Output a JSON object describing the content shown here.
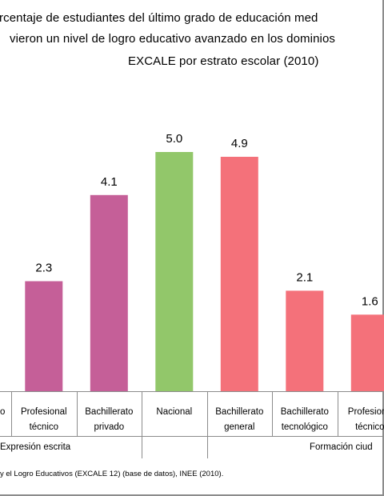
{
  "title": {
    "line1": "rcentaje de estudiantes del último grado de educación med",
    "line2": "vieron un nivel de logro educativo avanzado en los dominios",
    "line3": "EXCALE por estrato escolar (2010)"
  },
  "chart_data": {
    "type": "bar",
    "categories": [
      "o",
      "Profesional técnico",
      "Bachillerato privado",
      "Nacional",
      "Bachillerato general",
      "Bachillerato tecnológico",
      "Profesiona técnico"
    ],
    "category_lines": [
      [
        "o",
        ""
      ],
      [
        "Profesional",
        "técnico"
      ],
      [
        "Bachillerato",
        "privado"
      ],
      [
        "Nacional",
        ""
      ],
      [
        "Bachillerato",
        "general"
      ],
      [
        "Bachillerato",
        "tecnológico"
      ],
      [
        "Profesiona",
        "técnico"
      ]
    ],
    "values": [
      null,
      2.3,
      4.1,
      5.0,
      4.9,
      2.1,
      1.6
    ],
    "data_labels": [
      "",
      "2.3",
      "4.1",
      "5.0",
      "4.9",
      "2.1",
      "1.6"
    ],
    "bar_colors": [
      "#c55f98",
      "#c55f98",
      "#c55f98",
      "#92c76a",
      "#f4717a",
      "#f4717a",
      "#f4717a"
    ],
    "groups": [
      {
        "label": "Expresión escrita",
        "categories": [
          0,
          1,
          2
        ]
      },
      {
        "label": "Formación ciud",
        "categories": [
          4,
          5,
          6
        ]
      }
    ],
    "ylim": [
      0,
      5.6
    ],
    "grid": false
  },
  "source": "y el Logro Educativos (EXCALE 12) (base de datos), INEE (2010)."
}
